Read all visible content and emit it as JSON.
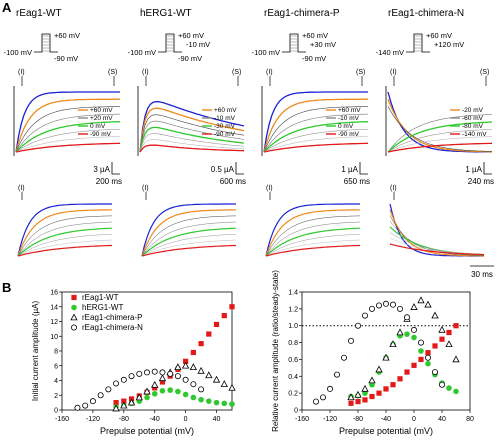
{
  "panel_labels": {
    "a": "A",
    "b": "B"
  },
  "colors": {
    "red": "#e11919",
    "green": "#2fc82f",
    "blue": "#1b22d6",
    "orange": "#ee8a1c",
    "gray": "#8c8c8c",
    "black": "#000000"
  },
  "columns": [
    {
      "title": "rEag1-WT",
      "protocol": {
        "top": "+60 mV",
        "bottom": "-90 mV",
        "hold": "-100 mV",
        "step": ""
      },
      "markers": [
        "(I)",
        "(S)"
      ],
      "legend": [
        "+60 mV",
        "+20 mV",
        "0 mV",
        "-90 mV"
      ],
      "legend_colors": [
        "#ee8a1c",
        "#8c8c8c",
        "#2fc82f",
        "#e11919"
      ],
      "scale_current": "3 µA",
      "scale_time": "200 ms",
      "inset_marker": "(I)"
    },
    {
      "title": "hERG1-WT",
      "protocol": {
        "top": "+60 mV",
        "bottom": "-90 mV",
        "hold": "-100 mV",
        "step": "-10 mV"
      },
      "markers": [
        "(I)",
        "(S)"
      ],
      "legend": [
        "+60 mV",
        "-10 mV",
        "-30 mV",
        "-90 mV"
      ],
      "legend_colors": [
        "#ee8a1c",
        "#8c8c8c",
        "#2fc82f",
        "#e11919"
      ],
      "scale_current": "0.5 µA",
      "scale_time": "600 ms",
      "inset_marker": "(I)"
    },
    {
      "title": "rEag1-chimera-P",
      "protocol": {
        "top": "+60 mV",
        "bottom": "-90 mV",
        "hold": "-100 mV",
        "step": "+30 mV"
      },
      "markers": [
        "(I)",
        "(S)"
      ],
      "legend": [
        "+60 mV",
        "-10 mV",
        "0 mV",
        "-90 mV"
      ],
      "legend_colors": [
        "#ee8a1c",
        "#8c8c8c",
        "#2fc82f",
        "#e11919"
      ],
      "scale_current": "1 µA",
      "scale_time": "650 ms",
      "inset_marker": "(I)"
    },
    {
      "title": "rEag1-chimera-N",
      "protocol": {
        "top": "+60 mV",
        "bottom": "",
        "hold": "-140 mV",
        "step": "+120 mV"
      },
      "markers": [
        "(I)",
        "(S)"
      ],
      "legend": [
        "-20 mV",
        "-60 mV",
        "-80 mV",
        "-140 mV"
      ],
      "legend_colors": [
        "#ee8a1c",
        "#8c8c8c",
        "#2fc82f",
        "#e11919"
      ],
      "scale_current": "1 µA",
      "scale_time": "240 ms",
      "inset_marker": "(I)"
    }
  ],
  "inset_scale_time": "30 ms",
  "chart_data": [
    {
      "type": "scatter",
      "title": "",
      "xlabel": "Prepulse potential (mV)",
      "ylabel": "Initial current amplitude (µA)",
      "xlim": [
        -160,
        60
      ],
      "ylim": [
        0,
        16
      ],
      "xticks": [
        -160,
        -120,
        -80,
        -40,
        0,
        40
      ],
      "xtick_labels": [
        "-160",
        "-120",
        "-80",
        "-40",
        "0",
        "40"
      ],
      "yticks": [
        0,
        2,
        4,
        6,
        8,
        10,
        12,
        14,
        16
      ],
      "legend_position": "top-left",
      "series": [
        {
          "name": "rEag1-WT",
          "marker": "filled-square",
          "color": "#e11919",
          "x": [
            -90,
            -80,
            -70,
            -60,
            -50,
            -40,
            -30,
            -20,
            -10,
            0,
            10,
            20,
            30,
            40,
            50,
            60
          ],
          "y": [
            1.0,
            1.2,
            1.5,
            1.9,
            2.4,
            3.0,
            3.8,
            4.6,
            5.5,
            6.6,
            7.8,
            9.0,
            10.3,
            11.6,
            12.8,
            14.0
          ]
        },
        {
          "name": "hERG1-WT",
          "marker": "filled-circle",
          "color": "#2fc82f",
          "x": [
            -90,
            -80,
            -70,
            -60,
            -50,
            -40,
            -30,
            -20,
            -10,
            0,
            10,
            20,
            30,
            40,
            50,
            60
          ],
          "y": [
            0.4,
            0.6,
            0.9,
            1.2,
            1.7,
            2.2,
            2.6,
            2.7,
            2.5,
            2.1,
            1.7,
            1.4,
            1.2,
            1.0,
            0.9,
            0.8
          ]
        },
        {
          "name": "rEag1-chimera-P",
          "marker": "open-triangle",
          "color": "#000000",
          "x": [
            -90,
            -80,
            -70,
            -60,
            -50,
            -40,
            -30,
            -20,
            -10,
            0,
            10,
            20,
            30,
            40,
            50,
            60
          ],
          "y": [
            0.2,
            0.6,
            1.0,
            1.7,
            2.5,
            3.4,
            4.3,
            5.1,
            5.8,
            6.0,
            5.8,
            5.3,
            4.7,
            4.1,
            3.5,
            3.0
          ]
        },
        {
          "name": "rEag1-chimera-N",
          "marker": "open-circle",
          "color": "#000000",
          "x": [
            -140,
            -130,
            -120,
            -110,
            -100,
            -90,
            -80,
            -70,
            -60,
            -50,
            -40,
            -30,
            -20,
            -10,
            0,
            10,
            20
          ],
          "y": [
            0.3,
            0.6,
            1.2,
            2.0,
            2.8,
            3.6,
            4.1,
            4.6,
            4.9,
            5.1,
            5.2,
            5.1,
            4.9,
            4.6,
            4.1,
            3.5,
            2.8
          ]
        }
      ]
    },
    {
      "type": "scatter",
      "title": "",
      "xlabel": "Prepulse potential (mV)",
      "ylabel": "Relative current amplitude (ratio/steady-state)",
      "xlim": [
        -160,
        80
      ],
      "ylim": [
        0,
        1.4
      ],
      "xticks": [
        -160,
        -120,
        -80,
        -40,
        0,
        40,
        80
      ],
      "xtick_labels": [
        "-160",
        "-120",
        "-80",
        "-40",
        "0",
        "40",
        "80"
      ],
      "yticks": [
        0,
        0.2,
        0.4,
        0.6,
        0.8,
        1.0,
        1.2,
        1.4
      ],
      "ytick_labels": [
        "0",
        "0.2",
        "0.4",
        "0.6",
        "0.8",
        "1.0",
        "1.2",
        "1.4"
      ],
      "reference_line": 1.0,
      "series": [
        {
          "name": "rEag1-WT",
          "marker": "filled-square",
          "color": "#e11919",
          "x": [
            -90,
            -80,
            -70,
            -60,
            -50,
            -40,
            -30,
            -20,
            -10,
            0,
            10,
            20,
            30,
            40,
            50,
            60
          ],
          "y": [
            0.08,
            0.1,
            0.12,
            0.16,
            0.2,
            0.25,
            0.3,
            0.37,
            0.45,
            0.53,
            0.6,
            0.68,
            0.76,
            0.84,
            0.92,
            1.0
          ]
        },
        {
          "name": "hERG1-WT",
          "marker": "filled-circle",
          "color": "#2fc82f",
          "x": [
            -90,
            -80,
            -70,
            -60,
            -50,
            -40,
            -30,
            -20,
            -10,
            0,
            10,
            20,
            30,
            40,
            50,
            60
          ],
          "y": [
            0.16,
            0.17,
            0.2,
            0.3,
            0.45,
            0.62,
            0.78,
            0.88,
            0.9,
            0.86,
            0.7,
            0.55,
            0.42,
            0.32,
            0.26,
            0.22
          ]
        },
        {
          "name": "rEag1-chimera-P",
          "marker": "open-triangle",
          "color": "#000000",
          "x": [
            -90,
            -80,
            -70,
            -60,
            -50,
            -40,
            -30,
            -20,
            -10,
            0,
            10,
            20,
            30,
            40,
            50,
            60
          ],
          "y": [
            0.15,
            0.18,
            0.25,
            0.35,
            0.48,
            0.62,
            0.78,
            0.92,
            1.08,
            1.22,
            1.3,
            1.25,
            1.12,
            0.95,
            0.78,
            0.6
          ]
        },
        {
          "name": "rEag1-chimera-N",
          "marker": "open-circle",
          "color": "#000000",
          "x": [
            -140,
            -130,
            -120,
            -110,
            -100,
            -90,
            -80,
            -70,
            -60,
            -50,
            -40,
            -30,
            -20,
            -10,
            0,
            10,
            20,
            30,
            40
          ],
          "y": [
            0.1,
            0.15,
            0.25,
            0.42,
            0.62,
            0.82,
            1.0,
            1.12,
            1.2,
            1.24,
            1.26,
            1.25,
            1.2,
            1.1,
            0.95,
            0.8,
            0.62,
            0.45,
            0.3
          ]
        }
      ]
    }
  ]
}
